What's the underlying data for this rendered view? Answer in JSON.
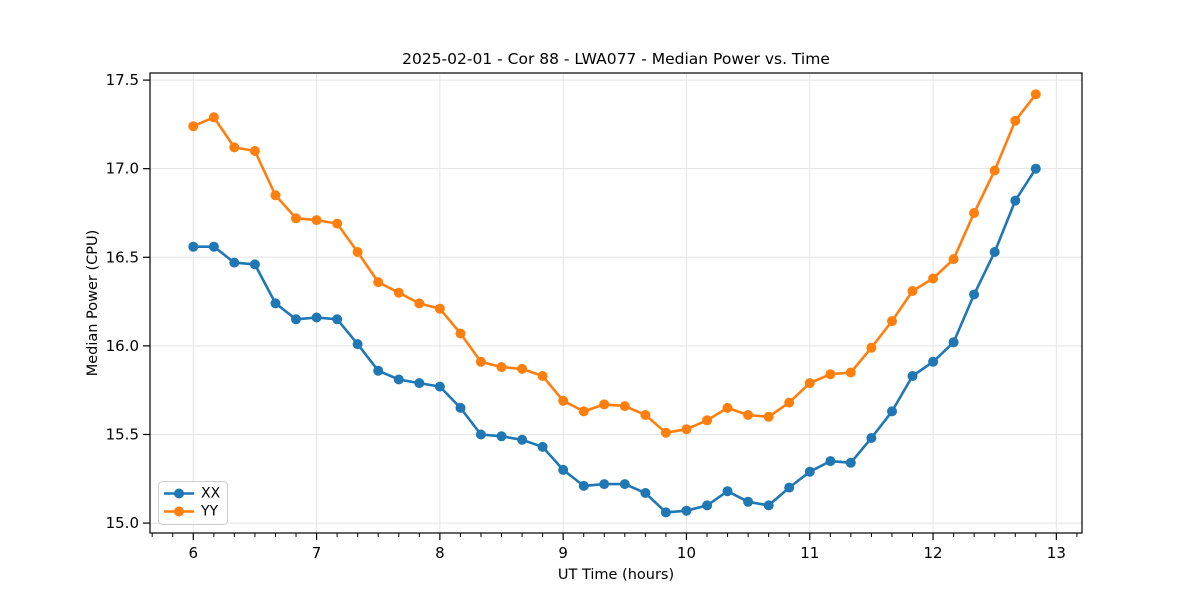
{
  "chart_data": {
    "type": "line",
    "title": "2025-02-01 - Cor 88 - LWA077 - Median Power vs. Time",
    "xlabel": "UT Time (hours)",
    "ylabel": "Median Power (CPU)",
    "xlim": [
      5.649,
      13.208
    ],
    "ylim": [
      14.944,
      17.54
    ],
    "grid": "major",
    "grid_color": "#e5e5e5",
    "spine_color": "#000000",
    "background_color": "#ffffff",
    "legend_position": "lower-left",
    "x_ticks": [
      {
        "value": 6,
        "label": "6"
      },
      {
        "value": 7,
        "label": "7"
      },
      {
        "value": 8,
        "label": "8"
      },
      {
        "value": 9,
        "label": "9"
      },
      {
        "value": 10,
        "label": "10"
      },
      {
        "value": 11,
        "label": "11"
      },
      {
        "value": 12,
        "label": "12"
      },
      {
        "value": 13,
        "label": "13"
      }
    ],
    "y_ticks": [
      {
        "value": 15.0,
        "label": "15.0"
      },
      {
        "value": 15.5,
        "label": "15.5"
      },
      {
        "value": 16.0,
        "label": "16.0"
      },
      {
        "value": 16.5,
        "label": "16.5"
      },
      {
        "value": 17.0,
        "label": "17.0"
      },
      {
        "value": 17.5,
        "label": "17.5"
      }
    ],
    "x_minor_step": 0.166667,
    "x": [
      6.0,
      6.167,
      6.333,
      6.5,
      6.667,
      6.833,
      7.0,
      7.167,
      7.333,
      7.5,
      7.667,
      7.833,
      8.0,
      8.167,
      8.333,
      8.5,
      8.667,
      8.833,
      9.0,
      9.167,
      9.333,
      9.5,
      9.667,
      9.833,
      10.0,
      10.167,
      10.333,
      10.5,
      10.667,
      10.833,
      11.0,
      11.167,
      11.333,
      11.5,
      11.667,
      11.833,
      12.0,
      12.167,
      12.333,
      12.5,
      12.667,
      12.833
    ],
    "series": [
      {
        "name": "XX",
        "color": "#1f77b4",
        "values": [
          16.56,
          16.56,
          16.47,
          16.46,
          16.24,
          16.15,
          16.16,
          16.15,
          16.01,
          15.86,
          15.81,
          15.79,
          15.77,
          15.65,
          15.5,
          15.49,
          15.47,
          15.43,
          15.3,
          15.21,
          15.22,
          15.22,
          15.17,
          15.06,
          15.07,
          15.1,
          15.18,
          15.12,
          15.1,
          15.2,
          15.29,
          15.35,
          15.34,
          15.48,
          15.63,
          15.83,
          15.91,
          16.02,
          16.29,
          16.53,
          16.82,
          17.0
        ]
      },
      {
        "name": "YY",
        "color": "#ff7f0e",
        "values": [
          17.24,
          17.29,
          17.12,
          17.1,
          16.85,
          16.72,
          16.71,
          16.69,
          16.53,
          16.36,
          16.3,
          16.24,
          16.21,
          16.07,
          15.91,
          15.88,
          15.87,
          15.83,
          15.69,
          15.63,
          15.67,
          15.66,
          15.61,
          15.51,
          15.53,
          15.58,
          15.65,
          15.61,
          15.6,
          15.68,
          15.79,
          15.84,
          15.85,
          15.99,
          16.14,
          16.31,
          16.38,
          16.49,
          16.75,
          16.99,
          17.27,
          17.42
        ]
      }
    ]
  }
}
